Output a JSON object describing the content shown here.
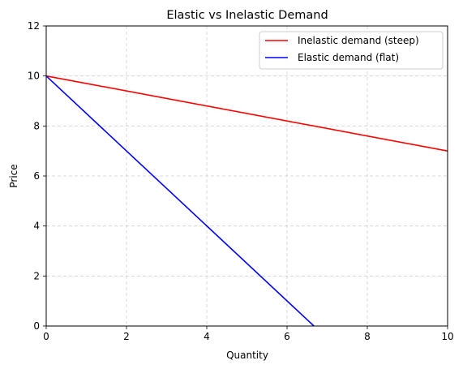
{
  "chart_data": {
    "type": "line",
    "title": "Elastic vs Inelastic Demand",
    "xlabel": "Quantity",
    "ylabel": "Price",
    "xlim": [
      0,
      10
    ],
    "ylim": [
      0,
      12
    ],
    "xticks": [
      "0",
      "2",
      "4",
      "6",
      "8",
      "10"
    ],
    "yticks": [
      "0",
      "2",
      "4",
      "6",
      "8",
      "10",
      "12"
    ],
    "grid": true,
    "legend_position": "top-right",
    "series": [
      {
        "name": "Inelastic demand (steep)",
        "color": "#ff0000",
        "x": [
          0,
          10
        ],
        "y": [
          10,
          7
        ]
      },
      {
        "name": "Elastic demand (flat)",
        "color": "#0000ff",
        "x": [
          0,
          6.67
        ],
        "y": [
          10,
          0
        ]
      }
    ]
  }
}
